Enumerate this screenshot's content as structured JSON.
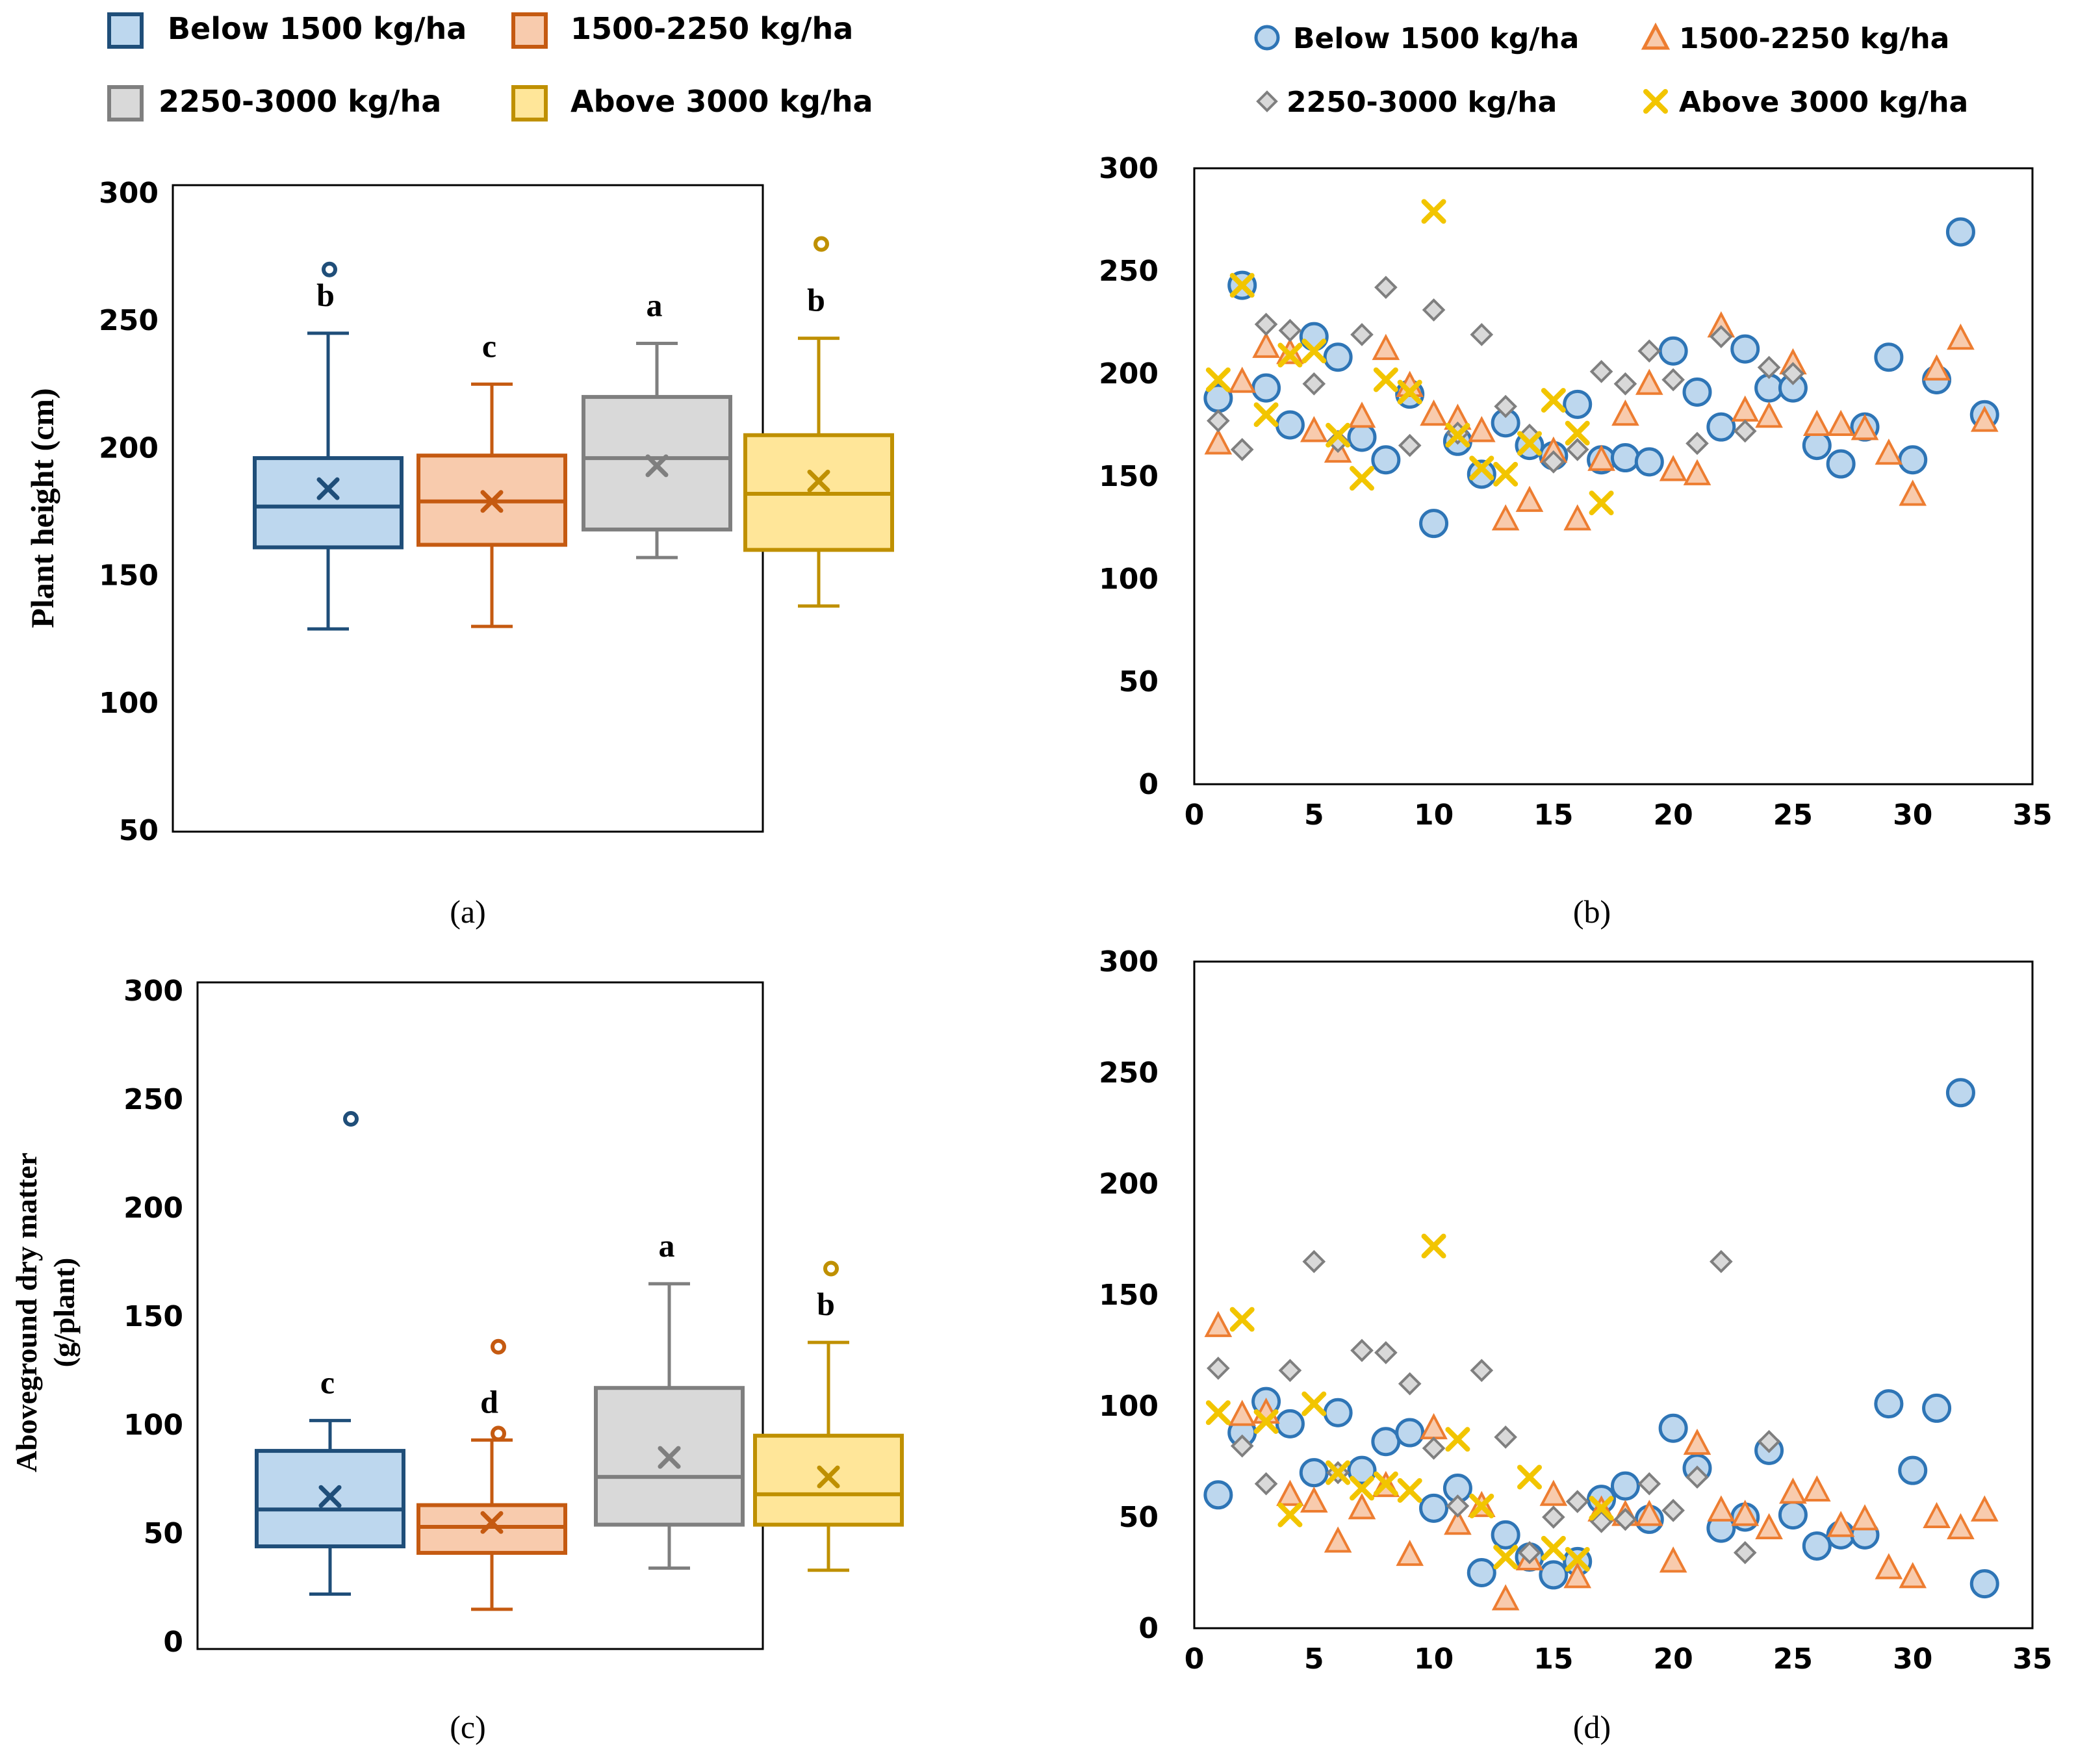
{
  "legend_box": [
    {
      "name": "Below 1500 kg/ha",
      "color": "#1f4e79",
      "fill": "#bdd7ee"
    },
    {
      "name": "1500-2250 kg/ha",
      "color": "#c55a11",
      "fill": "#f8cbad"
    },
    {
      "name": "2250-3000 kg/ha",
      "color": "#7f7f7f",
      "fill": "#d9d9d9"
    },
    {
      "name": "Above 3000 kg/ha",
      "color": "#bf9000",
      "fill": "#ffe699"
    }
  ],
  "legend_scatter": [
    {
      "name": "Below 1500 kg/ha",
      "marker": "circle",
      "color": "#2e75b6",
      "fill": "#bdd7ee"
    },
    {
      "name": "1500-2250 kg/ha",
      "marker": "triangle",
      "color": "#ed7d31",
      "fill": "#f8cbad"
    },
    {
      "name": "2250-3000 kg/ha",
      "marker": "diamond",
      "color": "#7f7f7f",
      "fill": "#d9d9d9"
    },
    {
      "name": "Above 3000 kg/ha",
      "marker": "x",
      "color": "#f2c500",
      "fill": "#ffe699"
    }
  ],
  "chart_data": [
    {
      "id": "a",
      "type": "box",
      "caption": "(a)",
      "ylabel": "Plant height (cm)",
      "ylim": [
        50,
        300
      ],
      "yticks": [
        50,
        100,
        150,
        200,
        250,
        300
      ],
      "series": [
        {
          "name": "Below 1500 kg/ha",
          "min": 129,
          "q1": 161,
          "median": 177,
          "q3": 196,
          "max": 245,
          "mean": 184,
          "outliers": [
            270
          ],
          "letter": "b"
        },
        {
          "name": "1500-2250 kg/ha",
          "min": 130,
          "q1": 162,
          "median": 179,
          "q3": 197,
          "max": 225,
          "mean": 179,
          "outliers": [],
          "letter": "c"
        },
        {
          "name": "2250-3000 kg/ha",
          "min": 157,
          "q1": 168,
          "median": 196,
          "q3": 220,
          "max": 241,
          "mean": 193,
          "outliers": [],
          "letter": "a"
        },
        {
          "name": "Above 3000 kg/ha",
          "min": 138,
          "q1": 160,
          "median": 182,
          "q3": 205,
          "max": 243,
          "mean": 187,
          "outliers": [
            280
          ],
          "letter": "b"
        }
      ]
    },
    {
      "id": "b",
      "type": "scatter",
      "caption": "(b)",
      "xlim": [
        0,
        35
      ],
      "ylim": [
        0,
        300
      ],
      "xticks": [
        0,
        5,
        10,
        15,
        20,
        25,
        30,
        35
      ],
      "yticks": [
        0,
        50,
        100,
        150,
        200,
        250,
        300
      ],
      "series": [
        {
          "name": "Below 1500 kg/ha",
          "points": [
            [
              1,
              188
            ],
            [
              2,
              243
            ],
            [
              3,
              193
            ],
            [
              4,
              175
            ],
            [
              5,
              218
            ],
            [
              6,
              208
            ],
            [
              7,
              169
            ],
            [
              8,
              158
            ],
            [
              9,
              190
            ],
            [
              10,
              127
            ],
            [
              11,
              167
            ],
            [
              12,
              151
            ],
            [
              13,
              176
            ],
            [
              14,
              165
            ],
            [
              15,
              160
            ],
            [
              16,
              185
            ],
            [
              17,
              158
            ],
            [
              18,
              159
            ],
            [
              19,
              157
            ],
            [
              20,
              211
            ],
            [
              21,
              191
            ],
            [
              22,
              174
            ],
            [
              23,
              212
            ],
            [
              24,
              193
            ],
            [
              25,
              193
            ],
            [
              26,
              165
            ],
            [
              27,
              156
            ],
            [
              28,
              174
            ],
            [
              29,
              208
            ],
            [
              30,
              158
            ],
            [
              31,
              197
            ],
            [
              32,
              269
            ],
            [
              33,
              180
            ]
          ]
        },
        {
          "name": "1500-2250 kg/ha",
          "points": [
            [
              1,
              166
            ],
            [
              2,
              196
            ],
            [
              3,
              213
            ],
            [
              4,
              210
            ],
            [
              5,
              172
            ],
            [
              6,
              162
            ],
            [
              7,
              179
            ],
            [
              8,
              212
            ],
            [
              9,
              194
            ],
            [
              10,
              180
            ],
            [
              11,
              178
            ],
            [
              12,
              172
            ],
            [
              13,
              129
            ],
            [
              14,
              138
            ],
            [
              15,
              162
            ],
            [
              16,
              129
            ],
            [
              17,
              158
            ],
            [
              18,
              180
            ],
            [
              19,
              195
            ],
            [
              20,
              153
            ],
            [
              21,
              151
            ],
            [
              22,
              223
            ],
            [
              23,
              182
            ],
            [
              24,
              179
            ],
            [
              25,
              205
            ],
            [
              26,
              175
            ],
            [
              27,
              175
            ],
            [
              28,
              173
            ],
            [
              29,
              161
            ],
            [
              30,
              141
            ],
            [
              31,
              202
            ],
            [
              32,
              217
            ],
            [
              33,
              177
            ]
          ]
        },
        {
          "name": "2250-3000 kg/ha",
          "points": [
            [
              1,
              177
            ],
            [
              2,
              163
            ],
            [
              3,
              224
            ],
            [
              4,
              221
            ],
            [
              5,
              195
            ],
            [
              6,
              167
            ],
            [
              7,
              219
            ],
            [
              8,
              242
            ],
            [
              9,
              165
            ],
            [
              10,
              231
            ],
            [
              11,
              171
            ],
            [
              12,
              219
            ],
            [
              13,
              184
            ],
            [
              14,
              170
            ],
            [
              15,
              157
            ],
            [
              16,
              163
            ],
            [
              17,
              201
            ],
            [
              18,
              195
            ],
            [
              19,
              211
            ],
            [
              20,
              197
            ],
            [
              21,
              166
            ],
            [
              22,
              218
            ],
            [
              23,
              172
            ],
            [
              24,
              203
            ],
            [
              25,
              200
            ]
          ]
        },
        {
          "name": "Above 3000 kg/ha",
          "points": [
            [
              1,
              197
            ],
            [
              2,
              243
            ],
            [
              3,
              180
            ],
            [
              4,
              209
            ],
            [
              5,
              211
            ],
            [
              6,
              170
            ],
            [
              7,
              149
            ],
            [
              8,
              197
            ],
            [
              9,
              191
            ],
            [
              10,
              279
            ],
            [
              11,
              170
            ],
            [
              12,
              154
            ],
            [
              13,
              151
            ],
            [
              14,
              166
            ],
            [
              15,
              187
            ],
            [
              16,
              171
            ],
            [
              17,
              137
            ]
          ]
        }
      ]
    },
    {
      "id": "c",
      "type": "box",
      "caption": "(c)",
      "ylabel": "Aboveground dry matter",
      "ylabel2": "(g/plant)",
      "ylim": [
        0,
        300
      ],
      "yticks": [
        0,
        50,
        100,
        150,
        200,
        250,
        300
      ],
      "series": [
        {
          "name": "Below 1500 kg/ha",
          "min": 22,
          "q1": 44,
          "median": 61,
          "q3": 88,
          "max": 102,
          "mean": 67,
          "outliers": [
            241
          ],
          "letter": "c"
        },
        {
          "name": "1500-2250 kg/ha",
          "min": 15,
          "q1": 41,
          "median": 53,
          "q3": 63,
          "max": 93,
          "mean": 55,
          "outliers": [
            96,
            136
          ],
          "letter": "d"
        },
        {
          "name": "2250-3000 kg/ha",
          "min": 34,
          "q1": 54,
          "median": 76,
          "q3": 117,
          "max": 165,
          "mean": 85,
          "outliers": [],
          "letter": "a"
        },
        {
          "name": "Above 3000 kg/ha",
          "min": 33,
          "q1": 54,
          "median": 68,
          "q3": 95,
          "max": 138,
          "mean": 76,
          "outliers": [
            172
          ],
          "letter": "b"
        }
      ]
    },
    {
      "id": "d",
      "type": "scatter",
      "caption": "(d)",
      "xlim": [
        0,
        35
      ],
      "ylim": [
        0,
        300
      ],
      "xticks": [
        0,
        5,
        10,
        15,
        20,
        25,
        30,
        35
      ],
      "yticks": [
        0,
        50,
        100,
        150,
        200,
        250,
        300
      ],
      "series": [
        {
          "name": "Below 1500 kg/ha",
          "points": [
            [
              1,
              60
            ],
            [
              2,
              88
            ],
            [
              3,
              102
            ],
            [
              4,
              92
            ],
            [
              5,
              70
            ],
            [
              6,
              97
            ],
            [
              7,
              71
            ],
            [
              8,
              84
            ],
            [
              9,
              88
            ],
            [
              10,
              54
            ],
            [
              11,
              63
            ],
            [
              12,
              25
            ],
            [
              13,
              42
            ],
            [
              14,
              32
            ],
            [
              15,
              24
            ],
            [
              16,
              30
            ],
            [
              17,
              58
            ],
            [
              18,
              64
            ],
            [
              19,
              49
            ],
            [
              20,
              90
            ],
            [
              21,
              72
            ],
            [
              22,
              45
            ],
            [
              23,
              50
            ],
            [
              24,
              80
            ],
            [
              25,
              51
            ],
            [
              26,
              37
            ],
            [
              27,
              42
            ],
            [
              28,
              42
            ],
            [
              29,
              101
            ],
            [
              30,
              71
            ],
            [
              31,
              99
            ],
            [
              32,
              241
            ],
            [
              33,
              20
            ]
          ]
        },
        {
          "name": "1500-2250 kg/ha",
          "points": [
            [
              1,
              136
            ],
            [
              2,
              96
            ],
            [
              3,
              97
            ],
            [
              4,
              60
            ],
            [
              5,
              57
            ],
            [
              6,
              39
            ],
            [
              7,
              54
            ],
            [
              8,
              64
            ],
            [
              9,
              33
            ],
            [
              10,
              90
            ],
            [
              11,
              47
            ],
            [
              12,
              55
            ],
            [
              13,
              13
            ],
            [
              14,
              31
            ],
            [
              15,
              60
            ],
            [
              16,
              23
            ],
            [
              17,
              53
            ],
            [
              18,
              51
            ],
            [
              19,
              51
            ],
            [
              20,
              30
            ],
            [
              21,
              83
            ],
            [
              22,
              53
            ],
            [
              23,
              51
            ],
            [
              24,
              45
            ],
            [
              25,
              61
            ],
            [
              26,
              62
            ],
            [
              27,
              46
            ],
            [
              28,
              49
            ],
            [
              29,
              27
            ],
            [
              30,
              23
            ],
            [
              31,
              50
            ],
            [
              32,
              45
            ],
            [
              33,
              53
            ]
          ]
        },
        {
          "name": "2250-3000 kg/ha",
          "points": [
            [
              1,
              117
            ],
            [
              2,
              82
            ],
            [
              3,
              65
            ],
            [
              4,
              116
            ],
            [
              5,
              165
            ],
            [
              6,
              70
            ],
            [
              7,
              125
            ],
            [
              8,
              124
            ],
            [
              9,
              110
            ],
            [
              10,
              81
            ],
            [
              11,
              55
            ],
            [
              12,
              116
            ],
            [
              13,
              86
            ],
            [
              14,
              34
            ],
            [
              15,
              50
            ],
            [
              16,
              57
            ],
            [
              17,
              48
            ],
            [
              18,
              49
            ],
            [
              19,
              65
            ],
            [
              20,
              53
            ],
            [
              21,
              68
            ],
            [
              22,
              165
            ],
            [
              23,
              34
            ],
            [
              24,
              84
            ]
          ]
        },
        {
          "name": "Above 3000 kg/ha",
          "points": [
            [
              1,
              97
            ],
            [
              2,
              139
            ],
            [
              3,
              93
            ],
            [
              4,
              51
            ],
            [
              5,
              101
            ],
            [
              6,
              70
            ],
            [
              7,
              63
            ],
            [
              8,
              65
            ],
            [
              9,
              62
            ],
            [
              10,
              172
            ],
            [
              11,
              85
            ],
            [
              12,
              55
            ],
            [
              13,
              32
            ],
            [
              14,
              68
            ],
            [
              15,
              36
            ],
            [
              16,
              31
            ],
            [
              17,
              54
            ]
          ]
        }
      ]
    }
  ]
}
